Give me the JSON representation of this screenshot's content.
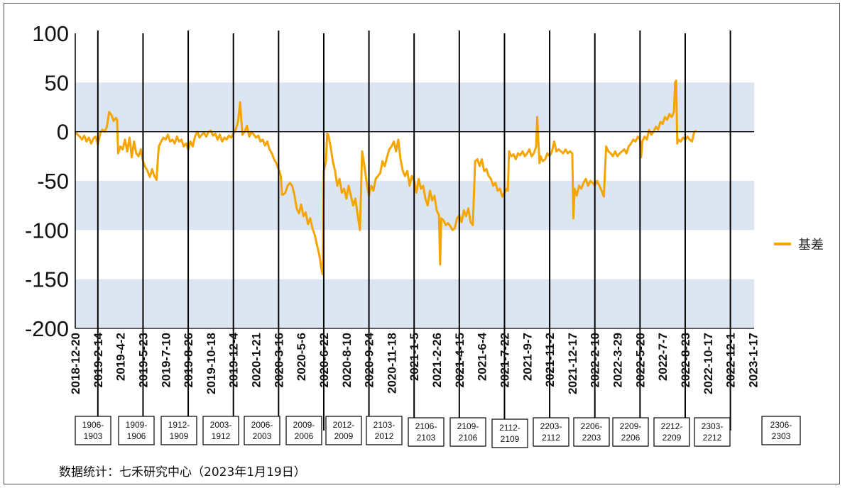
{
  "source_note": "数据统计：七禾研究中心（2023年1月19日）",
  "colors": {
    "series": "#f5a500",
    "band": "#dce6f2",
    "axis": "#000000"
  },
  "chart_data": {
    "type": "line",
    "title": "",
    "xlabel": "",
    "ylabel": "",
    "ylim": [
      -200,
      100
    ],
    "yticks": [
      100,
      50,
      0,
      -50,
      -100,
      -150,
      -200
    ],
    "shaded_bands": [
      [
        50,
        0
      ],
      [
        -50,
        -100
      ],
      [
        -150,
        -200
      ]
    ],
    "legend_position": "right",
    "x_tick_labels": [
      "2018-12-20",
      "2019-2-14",
      "2019-4-2",
      "2019-5-23",
      "2019-7-10",
      "2019-8-26",
      "2019-10-18",
      "2019-12-4",
      "2020-1-21",
      "2020-3-16",
      "2020-5-6",
      "2020-6-22",
      "2020-8-10",
      "2020-9-24",
      "2020-11-18",
      "2021-1-5",
      "2021-2-26",
      "2021-4-15",
      "2021-6-4",
      "2021-7-22",
      "2021-9-7",
      "2021-11-2",
      "2021-12-17",
      "2022-2-10",
      "2022-3-29",
      "2022-5-20",
      "2022-7-7",
      "2022-8-23",
      "2022-10-17",
      "2022-12-1",
      "2023-1-17"
    ],
    "contract_rolls": [
      "1906-1903",
      "1909-1906",
      "1912-1909",
      "2003-1912",
      "2006-2003",
      "2009-2006",
      "2012-2009",
      "2103-2012",
      "2106-2103",
      "2109-2106",
      "2112-2109",
      "2203-2112",
      "2206-2203",
      "2209-2206",
      "2212-2209",
      "2303-2212",
      "2306-2303"
    ],
    "series": [
      {
        "name": "基差",
        "color": "#f5a500",
        "points": [
          [
            0,
            0
          ],
          [
            0.1,
            -3
          ],
          [
            0.2,
            -5
          ],
          [
            0.3,
            -8
          ],
          [
            0.4,
            -4
          ],
          [
            0.5,
            -10
          ],
          [
            0.6,
            -6
          ],
          [
            0.7,
            -12
          ],
          [
            0.8,
            -7
          ],
          [
            0.9,
            -5
          ],
          [
            1.0,
            -13
          ],
          [
            1.1,
            -2
          ],
          [
            1.2,
            2
          ],
          [
            1.3,
            0
          ],
          [
            1.4,
            5
          ],
          [
            1.5,
            20
          ],
          [
            1.6,
            17
          ],
          [
            1.7,
            11
          ],
          [
            1.8,
            14
          ],
          [
            1.85,
            12
          ],
          [
            1.9,
            -22
          ],
          [
            2.0,
            -15
          ],
          [
            2.1,
            -18
          ],
          [
            2.2,
            -8
          ],
          [
            2.3,
            -20
          ],
          [
            2.4,
            -6
          ],
          [
            2.5,
            -26
          ],
          [
            2.6,
            -10
          ],
          [
            2.7,
            -22
          ],
          [
            2.8,
            -25
          ],
          [
            2.9,
            -18
          ],
          [
            3.0,
            -30
          ],
          [
            3.1,
            -36
          ],
          [
            3.2,
            -40
          ],
          [
            3.3,
            -46
          ],
          [
            3.4,
            -38
          ],
          [
            3.5,
            -45
          ],
          [
            3.6,
            -49
          ],
          [
            3.65,
            -30
          ],
          [
            3.7,
            -15
          ],
          [
            3.8,
            -10
          ],
          [
            3.9,
            -6
          ],
          [
            4.0,
            -8
          ],
          [
            4.1,
            -3
          ],
          [
            4.2,
            -10
          ],
          [
            4.3,
            -8
          ],
          [
            4.4,
            -12
          ],
          [
            4.5,
            -5
          ],
          [
            4.6,
            -10
          ],
          [
            4.7,
            -8
          ],
          [
            4.8,
            -15
          ],
          [
            4.9,
            -12
          ],
          [
            5.0,
            -18
          ],
          [
            5.1,
            -10
          ],
          [
            5.2,
            -15
          ],
          [
            5.3,
            -5
          ],
          [
            5.4,
            0
          ],
          [
            5.5,
            -6
          ],
          [
            5.6,
            -3
          ],
          [
            5.7,
            -1
          ],
          [
            5.8,
            -5
          ],
          [
            5.9,
            0
          ],
          [
            6.0,
            1
          ],
          [
            6.1,
            -4
          ],
          [
            6.2,
            -2
          ],
          [
            6.3,
            -8
          ],
          [
            6.4,
            -3
          ],
          [
            6.5,
            -10
          ],
          [
            6.6,
            -6
          ],
          [
            6.7,
            -8
          ],
          [
            6.8,
            -4
          ],
          [
            6.9,
            -6
          ],
          [
            7.0,
            -2
          ],
          [
            7.1,
            2
          ],
          [
            7.2,
            10
          ],
          [
            7.3,
            30
          ],
          [
            7.35,
            12
          ],
          [
            7.4,
            -3
          ],
          [
            7.5,
            0
          ],
          [
            7.6,
            6
          ],
          [
            7.7,
            -5
          ],
          [
            7.8,
            0
          ],
          [
            7.9,
            -3
          ],
          [
            8.0,
            -6
          ],
          [
            8.1,
            -4
          ],
          [
            8.2,
            -10
          ],
          [
            8.3,
            -8
          ],
          [
            8.4,
            -14
          ],
          [
            8.5,
            -10
          ],
          [
            8.6,
            -18
          ],
          [
            8.7,
            -22
          ],
          [
            8.8,
            -28
          ],
          [
            8.9,
            -32
          ],
          [
            9.0,
            -38
          ],
          [
            9.1,
            -45
          ],
          [
            9.15,
            -64
          ],
          [
            9.2,
            -64
          ],
          [
            9.3,
            -62
          ],
          [
            9.4,
            -55
          ],
          [
            9.5,
            -52
          ],
          [
            9.6,
            -55
          ],
          [
            9.7,
            -64
          ],
          [
            9.8,
            -78
          ],
          [
            9.9,
            -83
          ],
          [
            10.0,
            -74
          ],
          [
            10.1,
            -86
          ],
          [
            10.2,
            -82
          ],
          [
            10.3,
            -94
          ],
          [
            10.4,
            -88
          ],
          [
            10.5,
            -98
          ],
          [
            10.6,
            -105
          ],
          [
            10.7,
            -115
          ],
          [
            10.8,
            -125
          ],
          [
            10.9,
            -140
          ],
          [
            10.95,
            -145
          ],
          [
            11.0,
            -40
          ],
          [
            11.1,
            -30
          ],
          [
            11.15,
            -2
          ],
          [
            11.2,
            -3
          ],
          [
            11.3,
            -15
          ],
          [
            11.4,
            -30
          ],
          [
            11.5,
            -40
          ],
          [
            11.6,
            -55
          ],
          [
            11.7,
            -48
          ],
          [
            11.8,
            -62
          ],
          [
            11.9,
            -58
          ],
          [
            12.0,
            -68
          ],
          [
            12.1,
            -55
          ],
          [
            12.2,
            -65
          ],
          [
            12.3,
            -75
          ],
          [
            12.4,
            -68
          ],
          [
            12.5,
            -85
          ],
          [
            12.6,
            -100
          ],
          [
            12.7,
            -20
          ],
          [
            12.8,
            -35
          ],
          [
            12.9,
            -52
          ],
          [
            13.0,
            -65
          ],
          [
            13.1,
            -55
          ],
          [
            13.2,
            -60
          ],
          [
            13.3,
            -48
          ],
          [
            13.4,
            -45
          ],
          [
            13.5,
            -42
          ],
          [
            13.6,
            -30
          ],
          [
            13.7,
            -35
          ],
          [
            13.8,
            -26
          ],
          [
            13.9,
            -18
          ],
          [
            14.0,
            -15
          ],
          [
            14.1,
            -10
          ],
          [
            14.2,
            -20
          ],
          [
            14.3,
            -8
          ],
          [
            14.4,
            -28
          ],
          [
            14.5,
            -40
          ],
          [
            14.6,
            -45
          ],
          [
            14.7,
            -40
          ],
          [
            14.8,
            -55
          ],
          [
            14.9,
            -45
          ],
          [
            15.0,
            -50
          ],
          [
            15.1,
            -62
          ],
          [
            15.2,
            -48
          ],
          [
            15.3,
            -58
          ],
          [
            15.4,
            -55
          ],
          [
            15.5,
            -68
          ],
          [
            15.6,
            -75
          ],
          [
            15.7,
            -60
          ],
          [
            15.8,
            -70
          ],
          [
            15.9,
            -65
          ],
          [
            16.0,
            -80
          ],
          [
            16.1,
            -85
          ],
          [
            16.15,
            -135
          ],
          [
            16.2,
            -88
          ],
          [
            16.3,
            -90
          ],
          [
            16.4,
            -95
          ],
          [
            16.5,
            -93
          ],
          [
            16.6,
            -96
          ],
          [
            16.7,
            -100
          ],
          [
            16.8,
            -98
          ],
          [
            16.9,
            -88
          ],
          [
            17.0,
            -85
          ],
          [
            17.1,
            -92
          ],
          [
            17.2,
            -80
          ],
          [
            17.3,
            -86
          ],
          [
            17.4,
            -78
          ],
          [
            17.5,
            -92
          ],
          [
            17.6,
            -95
          ],
          [
            17.7,
            -30
          ],
          [
            17.8,
            -28
          ],
          [
            17.9,
            -35
          ],
          [
            18.0,
            -28
          ],
          [
            18.1,
            -40
          ],
          [
            18.2,
            -38
          ],
          [
            18.3,
            -45
          ],
          [
            18.4,
            -48
          ],
          [
            18.5,
            -55
          ],
          [
            18.6,
            -52
          ],
          [
            18.7,
            -60
          ],
          [
            18.8,
            -58
          ],
          [
            18.9,
            -66
          ],
          [
            19.0,
            -62
          ],
          [
            19.1,
            -58
          ],
          [
            19.15,
            -60
          ],
          [
            19.2,
            -20
          ],
          [
            19.3,
            -25
          ],
          [
            19.4,
            -23
          ],
          [
            19.5,
            -28
          ],
          [
            19.6,
            -22
          ],
          [
            19.7,
            -24
          ],
          [
            19.8,
            -20
          ],
          [
            19.9,
            -25
          ],
          [
            20.0,
            -22
          ],
          [
            20.1,
            -18
          ],
          [
            20.2,
            -25
          ],
          [
            20.3,
            -22
          ],
          [
            20.4,
            -15
          ],
          [
            20.45,
            15
          ],
          [
            20.5,
            -10
          ],
          [
            20.55,
            -32
          ],
          [
            20.6,
            -25
          ],
          [
            20.7,
            -30
          ],
          [
            20.8,
            -28
          ],
          [
            20.9,
            -22
          ],
          [
            21.0,
            -25
          ],
          [
            21.1,
            -20
          ],
          [
            21.2,
            -10
          ],
          [
            21.3,
            -20
          ],
          [
            21.4,
            -18
          ],
          [
            21.5,
            -20
          ],
          [
            21.6,
            -22
          ],
          [
            21.7,
            -18
          ],
          [
            21.8,
            -22
          ],
          [
            21.9,
            -20
          ],
          [
            22.0,
            -22
          ],
          [
            22.05,
            -88
          ],
          [
            22.1,
            -58
          ],
          [
            22.2,
            -65
          ],
          [
            22.3,
            -55
          ],
          [
            22.4,
            -58
          ],
          [
            22.5,
            -52
          ],
          [
            22.6,
            -48
          ],
          [
            22.7,
            -55
          ],
          [
            22.8,
            -50
          ],
          [
            22.9,
            -52
          ],
          [
            23.0,
            -55
          ],
          [
            23.1,
            -50
          ],
          [
            23.2,
            -55
          ],
          [
            23.3,
            -60
          ],
          [
            23.4,
            -66
          ],
          [
            23.5,
            -15
          ],
          [
            23.6,
            -20
          ],
          [
            23.7,
            -22
          ],
          [
            23.8,
            -25
          ],
          [
            23.9,
            -20
          ],
          [
            24.0,
            -25
          ],
          [
            24.1,
            -22
          ],
          [
            24.2,
            -20
          ],
          [
            24.3,
            -18
          ],
          [
            24.4,
            -22
          ],
          [
            24.5,
            -15
          ],
          [
            24.6,
            -12
          ],
          [
            24.7,
            -8
          ],
          [
            24.8,
            -10
          ],
          [
            24.9,
            -5
          ],
          [
            25.0,
            -8
          ],
          [
            25.05,
            -26
          ],
          [
            25.1,
            -10
          ],
          [
            25.2,
            -5
          ],
          [
            25.3,
            -8
          ],
          [
            25.4,
            2
          ],
          [
            25.5,
            -3
          ],
          [
            25.6,
            0
          ],
          [
            25.7,
            5
          ],
          [
            25.8,
            2
          ],
          [
            25.9,
            10
          ],
          [
            26.0,
            8
          ],
          [
            26.1,
            15
          ],
          [
            26.2,
            12
          ],
          [
            26.3,
            18
          ],
          [
            26.4,
            15
          ],
          [
            26.5,
            20
          ],
          [
            26.55,
            50
          ],
          [
            26.6,
            52
          ],
          [
            26.65,
            -12
          ],
          [
            26.7,
            -8
          ],
          [
            26.8,
            -10
          ],
          [
            26.9,
            -6
          ],
          [
            27.0,
            -8
          ],
          [
            27.1,
            -5
          ],
          [
            27.2,
            -8
          ],
          [
            27.3,
            -10
          ],
          [
            27.4,
            0
          ],
          [
            27.5,
            1
          ]
        ]
      }
    ]
  }
}
